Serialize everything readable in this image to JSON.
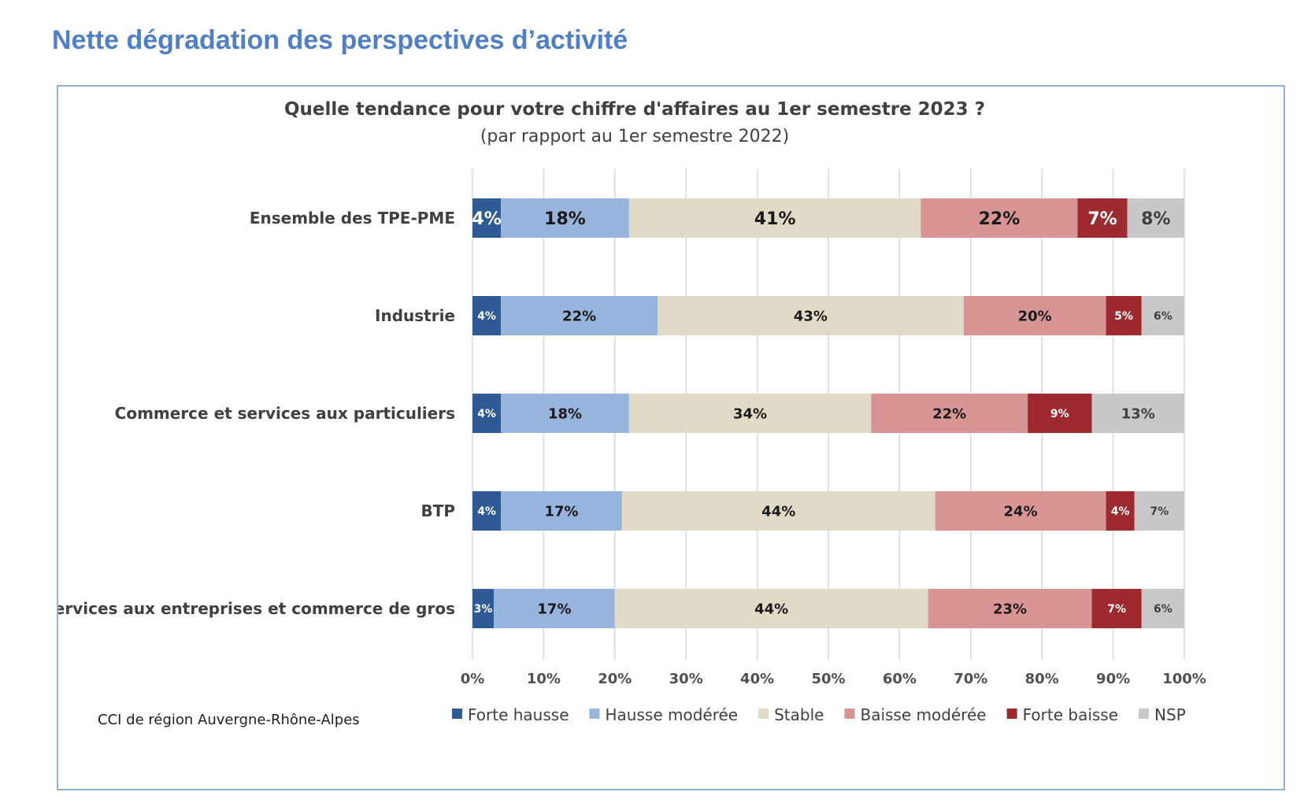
{
  "page_title": "Nette dégradation des perspectives d’activité",
  "source": "CCI de région Auvergne-Rhône-Alpes",
  "chart_data": {
    "type": "bar",
    "orientation": "horizontal",
    "stacked": true,
    "title": "Quelle tendance pour votre chiffre d'affaires au 1er semestre 2023 ?",
    "subtitle": "(par rapport au 1er semestre 2022)",
    "categories": [
      "Ensemble des TPE-PME",
      "Industrie",
      "Commerce et services aux particuliers",
      "BTP",
      "Services aux entreprises et commerce de gros"
    ],
    "series": [
      {
        "name": "Forte hausse",
        "color": "#2e5a95",
        "label_color": "#ffffff",
        "values": [
          4,
          4,
          4,
          4,
          3
        ],
        "labels": [
          "4%",
          "4%",
          "4%",
          "4%",
          "3%"
        ]
      },
      {
        "name": "Hausse modérée",
        "color": "#97b4dc",
        "label_color": "#1a1a1a",
        "values": [
          18,
          22,
          18,
          17,
          17
        ],
        "labels": [
          "18%",
          "22%",
          "18%",
          "17%",
          "17%"
        ]
      },
      {
        "name": "Stable",
        "color": "#e1dac6",
        "label_color": "#1a1a1a",
        "values": [
          41,
          43,
          34,
          44,
          44
        ],
        "labels": [
          "41%",
          "43%",
          "34%",
          "44%",
          "44%"
        ]
      },
      {
        "name": "Baisse modérée",
        "color": "#d99494",
        "label_color": "#1a1a1a",
        "values": [
          22,
          20,
          22,
          24,
          23
        ],
        "labels": [
          "22%",
          "20%",
          "22%",
          "24%",
          "23%"
        ]
      },
      {
        "name": "Forte baisse",
        "color": "#9c2a2e",
        "label_color": "#ffffff",
        "values": [
          7,
          5,
          9,
          4,
          7
        ],
        "labels": [
          "7%",
          "5%",
          "9%",
          "4%",
          "7%"
        ]
      },
      {
        "name": "NSP",
        "color": "#c8c8c8",
        "label_color": "#404040",
        "values": [
          8,
          6,
          13,
          7,
          6
        ],
        "labels": [
          "8%",
          "6%",
          "13%",
          "7%",
          "6%"
        ]
      }
    ],
    "xaxis": {
      "range": [
        0,
        100
      ],
      "ticks": [
        0,
        10,
        20,
        30,
        40,
        50,
        60,
        70,
        80,
        90,
        100
      ],
      "tick_labels": [
        "0%",
        "10%",
        "20%",
        "30%",
        "40%",
        "50%",
        "60%",
        "70%",
        "80%",
        "90%",
        "100%"
      ]
    },
    "grid": true,
    "legend_position": "bottom"
  }
}
